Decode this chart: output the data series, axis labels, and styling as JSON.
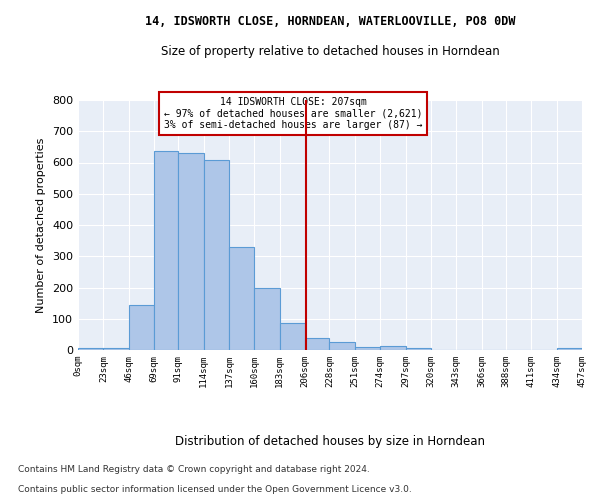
{
  "title1": "14, IDSWORTH CLOSE, HORNDEAN, WATERLOOVILLE, PO8 0DW",
  "title2": "Size of property relative to detached houses in Horndean",
  "xlabel": "Distribution of detached houses by size in Horndean",
  "ylabel": "Number of detached properties",
  "bin_edges": [
    0,
    23,
    46,
    69,
    91,
    114,
    137,
    160,
    183,
    206,
    228,
    251,
    274,
    297,
    320,
    343,
    366,
    388,
    411,
    434,
    457
  ],
  "bin_counts": [
    5,
    8,
    143,
    638,
    630,
    608,
    330,
    200,
    85,
    40,
    25,
    10,
    12,
    8,
    0,
    0,
    0,
    0,
    0,
    5
  ],
  "bar_color": "#aec6e8",
  "bar_edge_color": "#5b9bd5",
  "vline_x": 207,
  "vline_color": "#c00000",
  "annotation_line1": "14 IDSWORTH CLOSE: 207sqm",
  "annotation_line2": "← 97% of detached houses are smaller (2,621)",
  "annotation_line3": "3% of semi-detached houses are larger (87) →",
  "ylim": [
    0,
    800
  ],
  "yticks": [
    0,
    100,
    200,
    300,
    400,
    500,
    600,
    700,
    800
  ],
  "tick_labels": [
    "0sqm",
    "23sqm",
    "46sqm",
    "69sqm",
    "91sqm",
    "114sqm",
    "137sqm",
    "160sqm",
    "183sqm",
    "206sqm",
    "228sqm",
    "251sqm",
    "274sqm",
    "297sqm",
    "320sqm",
    "343sqm",
    "366sqm",
    "388sqm",
    "411sqm",
    "434sqm",
    "457sqm"
  ],
  "footer1": "Contains HM Land Registry data © Crown copyright and database right 2024.",
  "footer2": "Contains public sector information licensed under the Open Government Licence v3.0.",
  "bg_color": "#e8eef7",
  "grid_color": "#ffffff"
}
